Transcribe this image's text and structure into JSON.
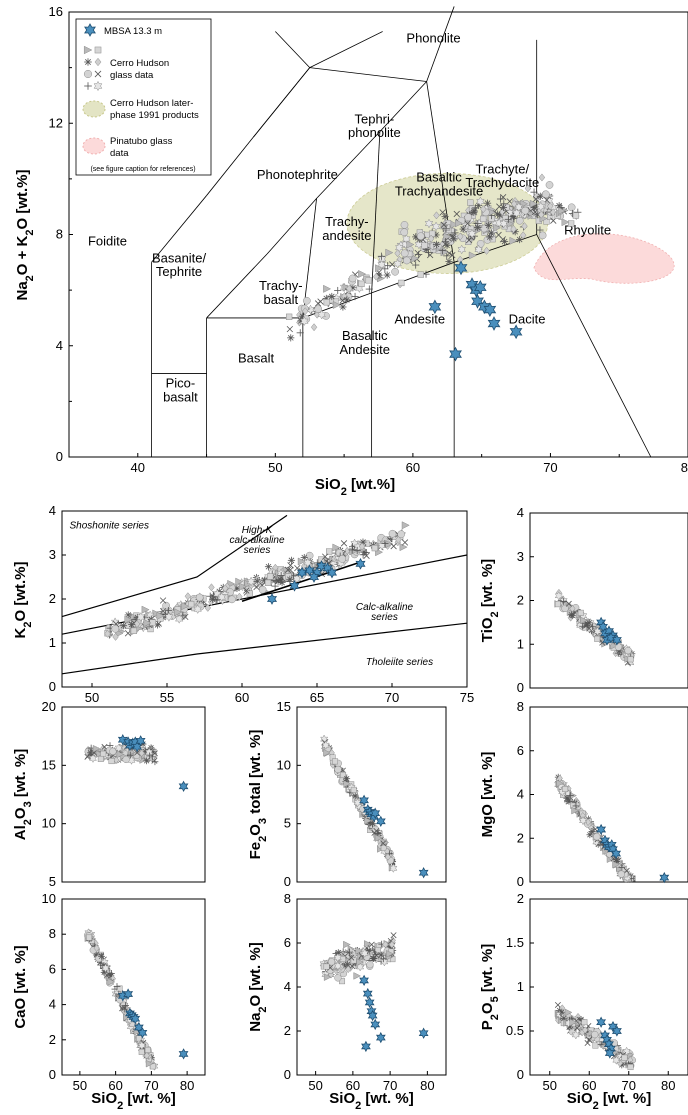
{
  "chart_data": [
    {
      "id": "tas",
      "type": "scatter",
      "xlabel": "SiO2 [wt.%]",
      "ylabel": "Na2O + K2O [wt.%]",
      "xlim": [
        35,
        80
      ],
      "ylim": [
        0,
        16
      ],
      "xticks": [
        "40",
        "50",
        "60",
        "70",
        "80"
      ],
      "yticks": [
        "0",
        "4",
        "8",
        "12",
        "16"
      ],
      "fields": [
        "Phonolite",
        "Tephri-",
        "phonolite",
        "Trachyte/",
        "Trachydacite",
        "Phonotephrite",
        "Basaltic",
        "Trachyandesite",
        "Rhyolite",
        "Foidite",
        "Trachy-",
        "andesite",
        "Basanite/",
        "Tephrite",
        "Trachy-",
        "basalt",
        "Andesite",
        "Dacite",
        "Basaltic",
        "Andesite",
        "Basalt",
        "Pico-",
        "basalt"
      ],
      "legend": {
        "mbsa": "MBSA 13.3 m",
        "hudson_1": "Cerro Hudson",
        "hudson_2": "glass data",
        "later_1": "Cerro Hudson later-",
        "later_2": "phase 1991 products",
        "pina_1": "Pinatubo glass",
        "pina_2": "data",
        "note": "(see figure caption for references)"
      },
      "mbsa_points": [
        [
          63.5,
          6.8
        ],
        [
          64.3,
          6.2
        ],
        [
          64.6,
          6.0
        ],
        [
          64.9,
          6.1
        ],
        [
          64.7,
          5.6
        ],
        [
          65.2,
          5.4
        ],
        [
          65.6,
          5.3
        ],
        [
          65.9,
          4.8
        ],
        [
          67.5,
          4.5
        ],
        [
          61.6,
          5.4
        ],
        [
          63.1,
          3.7
        ]
      ],
      "colors": {
        "mbsa": "#4a8fbd",
        "glass": "#b5b5b5",
        "later": "#e3e4c4",
        "pinatubo": "#fcdada"
      }
    },
    {
      "id": "k2o",
      "type": "scatter",
      "xlabel": "",
      "ylabel": "K2O [wt.%]",
      "xlim": [
        48,
        75
      ],
      "ylim": [
        0,
        4
      ],
      "xticks": [
        "50",
        "55",
        "60",
        "65",
        "70",
        "75"
      ],
      "yticks": [
        "0",
        "1",
        "2",
        "3",
        "4"
      ],
      "annotations": {
        "shoshonite": "Shoshonite series",
        "highk_1": "High-K",
        "highk_2": "calc-alkaline",
        "highk_3": "series",
        "calc_1": "Calc-alkaline",
        "calc_2": "series",
        "thol": "Tholeiite series"
      },
      "mbsa_points": [
        [
          62,
          2.0
        ],
        [
          63.5,
          2.3
        ],
        [
          64,
          2.6
        ],
        [
          64.5,
          2.65
        ],
        [
          65,
          2.6
        ],
        [
          65.3,
          2.75
        ],
        [
          65.7,
          2.7
        ],
        [
          66,
          2.6
        ],
        [
          67.9,
          2.8
        ],
        [
          64.8,
          2.5
        ]
      ]
    },
    {
      "id": "tio2",
      "type": "scatter",
      "xlabel": "",
      "ylabel": "TiO2 [wt. %]",
      "xlim": [
        45,
        85
      ],
      "ylim": [
        0,
        4
      ],
      "xticks": [],
      "yticks": [
        "0",
        "1",
        "2",
        "3",
        "4"
      ],
      "mbsa_points": [
        [
          63,
          1.5
        ],
        [
          64,
          1.25
        ],
        [
          65,
          1.3
        ],
        [
          64.5,
          1.1
        ],
        [
          66,
          1.2
        ],
        [
          63.5,
          1.4
        ],
        [
          65.5,
          1.15
        ],
        [
          67,
          1.1
        ]
      ]
    },
    {
      "id": "al2o3",
      "type": "scatter",
      "xlabel": "",
      "ylabel": "Al2O3 [wt. %]",
      "xlim": [
        45,
        85
      ],
      "ylim": [
        5,
        20
      ],
      "xticks": [],
      "yticks": [
        "5",
        "10",
        "15",
        "20"
      ],
      "mbsa_points": [
        [
          62,
          17.2
        ],
        [
          63.5,
          17.0
        ],
        [
          64,
          16.7
        ],
        [
          64.8,
          16.9
        ],
        [
          65.5,
          17.0
        ],
        [
          66,
          16.6
        ],
        [
          67,
          17.1
        ],
        [
          79,
          13.2
        ]
      ]
    },
    {
      "id": "fe2o3",
      "type": "scatter",
      "xlabel": "",
      "ylabel": "Fe2O3 total [wt. %]",
      "xlim": [
        45,
        85
      ],
      "ylim": [
        0,
        15
      ],
      "xticks": [],
      "yticks": [
        "0",
        "5",
        "10",
        "15"
      ],
      "mbsa_points": [
        [
          63,
          7.0
        ],
        [
          64,
          6.2
        ],
        [
          64.5,
          6.0
        ],
        [
          65,
          5.8
        ],
        [
          65.7,
          5.6
        ],
        [
          66,
          5.9
        ],
        [
          67.5,
          5.2
        ],
        [
          79,
          0.8
        ]
      ]
    },
    {
      "id": "mgo",
      "type": "scatter",
      "xlabel": "",
      "ylabel": "MgO [wt. %]",
      "xlim": [
        45,
        85
      ],
      "ylim": [
        0,
        8
      ],
      "xticks": [],
      "yticks": [
        "0",
        "2",
        "4",
        "6",
        "8"
      ],
      "mbsa_points": [
        [
          63,
          2.4
        ],
        [
          64,
          1.9
        ],
        [
          64.5,
          1.7
        ],
        [
          65,
          1.6
        ],
        [
          65.7,
          1.7
        ],
        [
          66,
          1.5
        ],
        [
          66.8,
          1.3
        ],
        [
          79,
          0.2
        ]
      ]
    },
    {
      "id": "cao",
      "type": "scatter",
      "xlabel": "SiO2 [wt. %]",
      "ylabel": "CaO [wt. %]",
      "xlim": [
        45,
        85
      ],
      "ylim": [
        0,
        10
      ],
      "xticks": [
        "50",
        "60",
        "70",
        "80"
      ],
      "yticks": [
        "0",
        "2",
        "4",
        "6",
        "8",
        "10"
      ],
      "mbsa_points": [
        [
          62,
          4.5
        ],
        [
          63.5,
          4.6
        ],
        [
          64,
          3.5
        ],
        [
          64.5,
          3.4
        ],
        [
          65,
          3.3
        ],
        [
          65.5,
          3.2
        ],
        [
          66.5,
          2.7
        ],
        [
          67.5,
          2.4
        ],
        [
          79,
          1.2
        ]
      ]
    },
    {
      "id": "na2o",
      "type": "scatter",
      "xlabel": "SiO2 [wt. %]",
      "ylabel": "Na2O [wt. %]",
      "xlim": [
        45,
        85
      ],
      "ylim": [
        0,
        8
      ],
      "xticks": [
        "50",
        "60",
        "70",
        "80"
      ],
      "yticks": [
        "0",
        "2",
        "4",
        "6",
        "8"
      ],
      "mbsa_points": [
        [
          63,
          4.3
        ],
        [
          64,
          3.7
        ],
        [
          64.5,
          3.3
        ],
        [
          65,
          2.9
        ],
        [
          65.3,
          2.7
        ],
        [
          66,
          2.3
        ],
        [
          67.5,
          1.7
        ],
        [
          63.5,
          1.3
        ],
        [
          79,
          1.9
        ]
      ]
    },
    {
      "id": "p2o5",
      "type": "scatter",
      "xlabel": "SiO2 [wt. %]",
      "ylabel": "P2O5 [wt. %]",
      "xlim": [
        45,
        85
      ],
      "ylim": [
        0,
        2
      ],
      "xticks": [
        "50",
        "60",
        "70",
        "80"
      ],
      "yticks": [
        "0",
        "0.5",
        "1",
        "1.5",
        "2"
      ],
      "mbsa_points": [
        [
          63,
          0.6
        ],
        [
          64,
          0.45
        ],
        [
          64.5,
          0.4
        ],
        [
          65,
          0.35
        ],
        [
          65.5,
          0.3
        ],
        [
          66,
          0.55
        ],
        [
          67,
          0.5
        ],
        [
          65.2,
          0.25
        ]
      ]
    }
  ]
}
